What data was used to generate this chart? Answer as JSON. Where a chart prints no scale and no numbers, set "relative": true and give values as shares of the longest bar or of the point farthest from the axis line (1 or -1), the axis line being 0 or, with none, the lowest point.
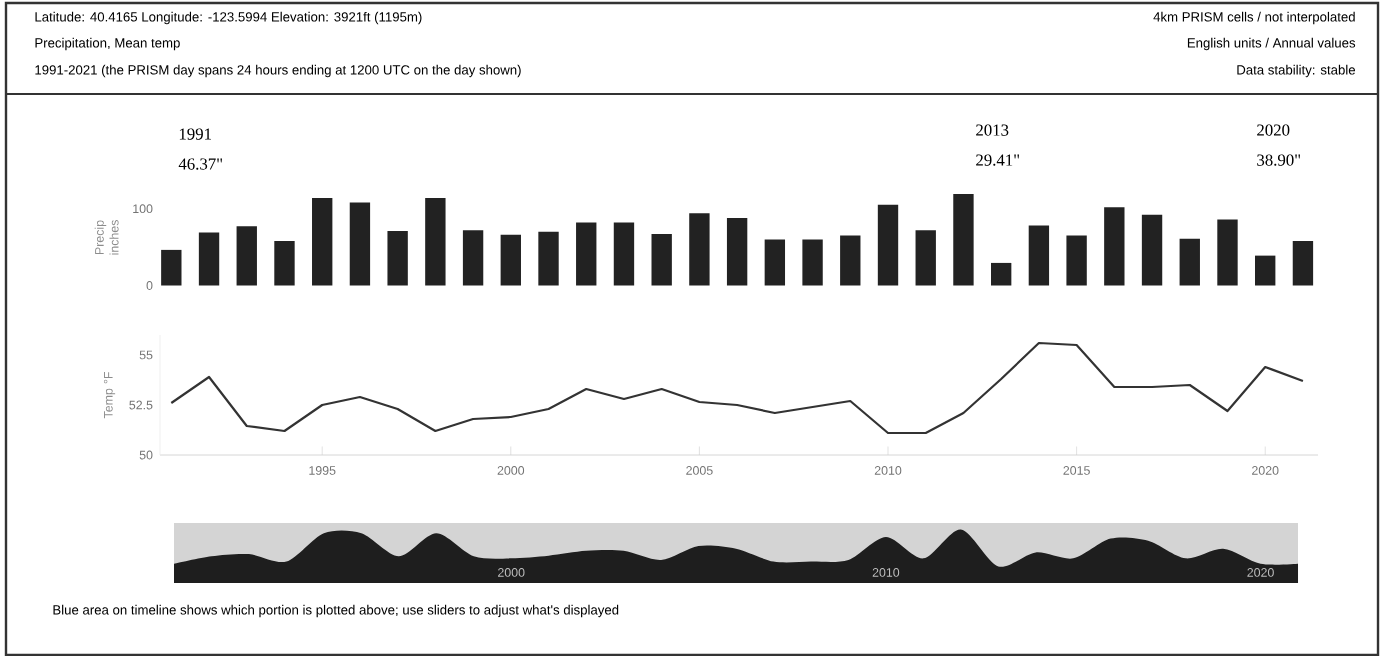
{
  "chart_data": [
    {
      "type": "bar",
      "title": "Latitude: 40.4165 Longitude: -123.5994 Elevation: 3921ft (1195m)",
      "subtitle": "Precipitation, Mean temp",
      "ylabel": "Precip inches",
      "color": "#222222",
      "annotations": [
        "1991-2021 (the PRISM day spans 24 hours ending at 1200 UTC on the day shown)",
        "4km PRISM cells / not interpolated",
        "English units / Annual values",
        "Data stability: stable",
        "1991 46.37\"",
        "2013 29.41\"",
        "2020 38.90\""
      ],
      "x": [
        1991,
        1992,
        1993,
        1994,
        1995,
        1996,
        1997,
        1998,
        1999,
        2000,
        2001,
        2002,
        2003,
        2004,
        2005,
        2006,
        2007,
        2008,
        2009,
        2010,
        2011,
        2012,
        2013,
        2014,
        2015,
        2016,
        2017,
        2018,
        2019,
        2020,
        2021
      ],
      "values": [
        46.37,
        69,
        77,
        58,
        114,
        108,
        71,
        114,
        72,
        66,
        70,
        82,
        82,
        67,
        94,
        88,
        60,
        60,
        65,
        105,
        72,
        119,
        29.41,
        78,
        65,
        102,
        92,
        61,
        86,
        38.9,
        58
      ],
      "xlim": [
        1990.7,
        2021.4
      ],
      "ylim": [
        0,
        125
      ],
      "yticks": [
        0,
        100
      ],
      "tick_labels": "y"
    },
    {
      "type": "line",
      "ylabel": "Temp °F",
      "color": "#333333",
      "x": [
        1991,
        1992,
        1993,
        1994,
        1995,
        1996,
        1997,
        1998,
        1999,
        2000,
        2001,
        2002,
        2003,
        2004,
        2005,
        2006,
        2007,
        2008,
        2009,
        2010,
        2011,
        2012,
        2013,
        2014,
        2015,
        2016,
        2017,
        2018,
        2019,
        2020,
        2021
      ],
      "values": [
        52.6,
        53.9,
        51.45,
        51.2,
        52.5,
        52.9,
        52.3,
        51.2,
        51.8,
        51.9,
        52.3,
        53.3,
        52.8,
        53.3,
        52.65,
        52.5,
        52.1,
        52.4,
        52.7,
        51.1,
        51.1,
        52.1,
        53.8,
        55.6,
        55.5,
        53.4,
        53.4,
        53.5,
        52.2,
        54.4,
        53.7
      ],
      "xlim": [
        1990.7,
        2021.4
      ],
      "ylim": [
        50,
        56
      ],
      "yticks": [
        50,
        52.5,
        55
      ],
      "xticks": [
        1995,
        2000,
        2005,
        2010,
        2015,
        2020
      ]
    },
    {
      "type": "area",
      "relative": true,
      "color": "#1e1e1e",
      "annotations": [
        "Blue area on timeline shows which portion is plotted above; use sliders to adjust what's displayed"
      ],
      "x": [
        1991,
        1992,
        1993,
        1994,
        1995,
        1996,
        1997,
        1998,
        1999,
        2000,
        2001,
        2002,
        2003,
        2004,
        2005,
        2006,
        2007,
        2008,
        2009,
        2010,
        2011,
        2012,
        2013,
        2014,
        2015,
        2016,
        2017,
        2018,
        2019,
        2020,
        2021
      ],
      "values": [
        0.36,
        0.5,
        0.54,
        0.4,
        0.93,
        0.93,
        0.5,
        0.93,
        0.5,
        0.46,
        0.51,
        0.6,
        0.6,
        0.43,
        0.69,
        0.64,
        0.4,
        0.4,
        0.43,
        0.86,
        0.46,
        1,
        0.31,
        0.57,
        0.46,
        0.83,
        0.79,
        0.46,
        0.64,
        0.36,
        0.36
      ],
      "xlim": [
        1991,
        2021
      ],
      "xticks": [
        2000,
        2010,
        2020
      ],
      "tick_labels": "x"
    }
  ]
}
